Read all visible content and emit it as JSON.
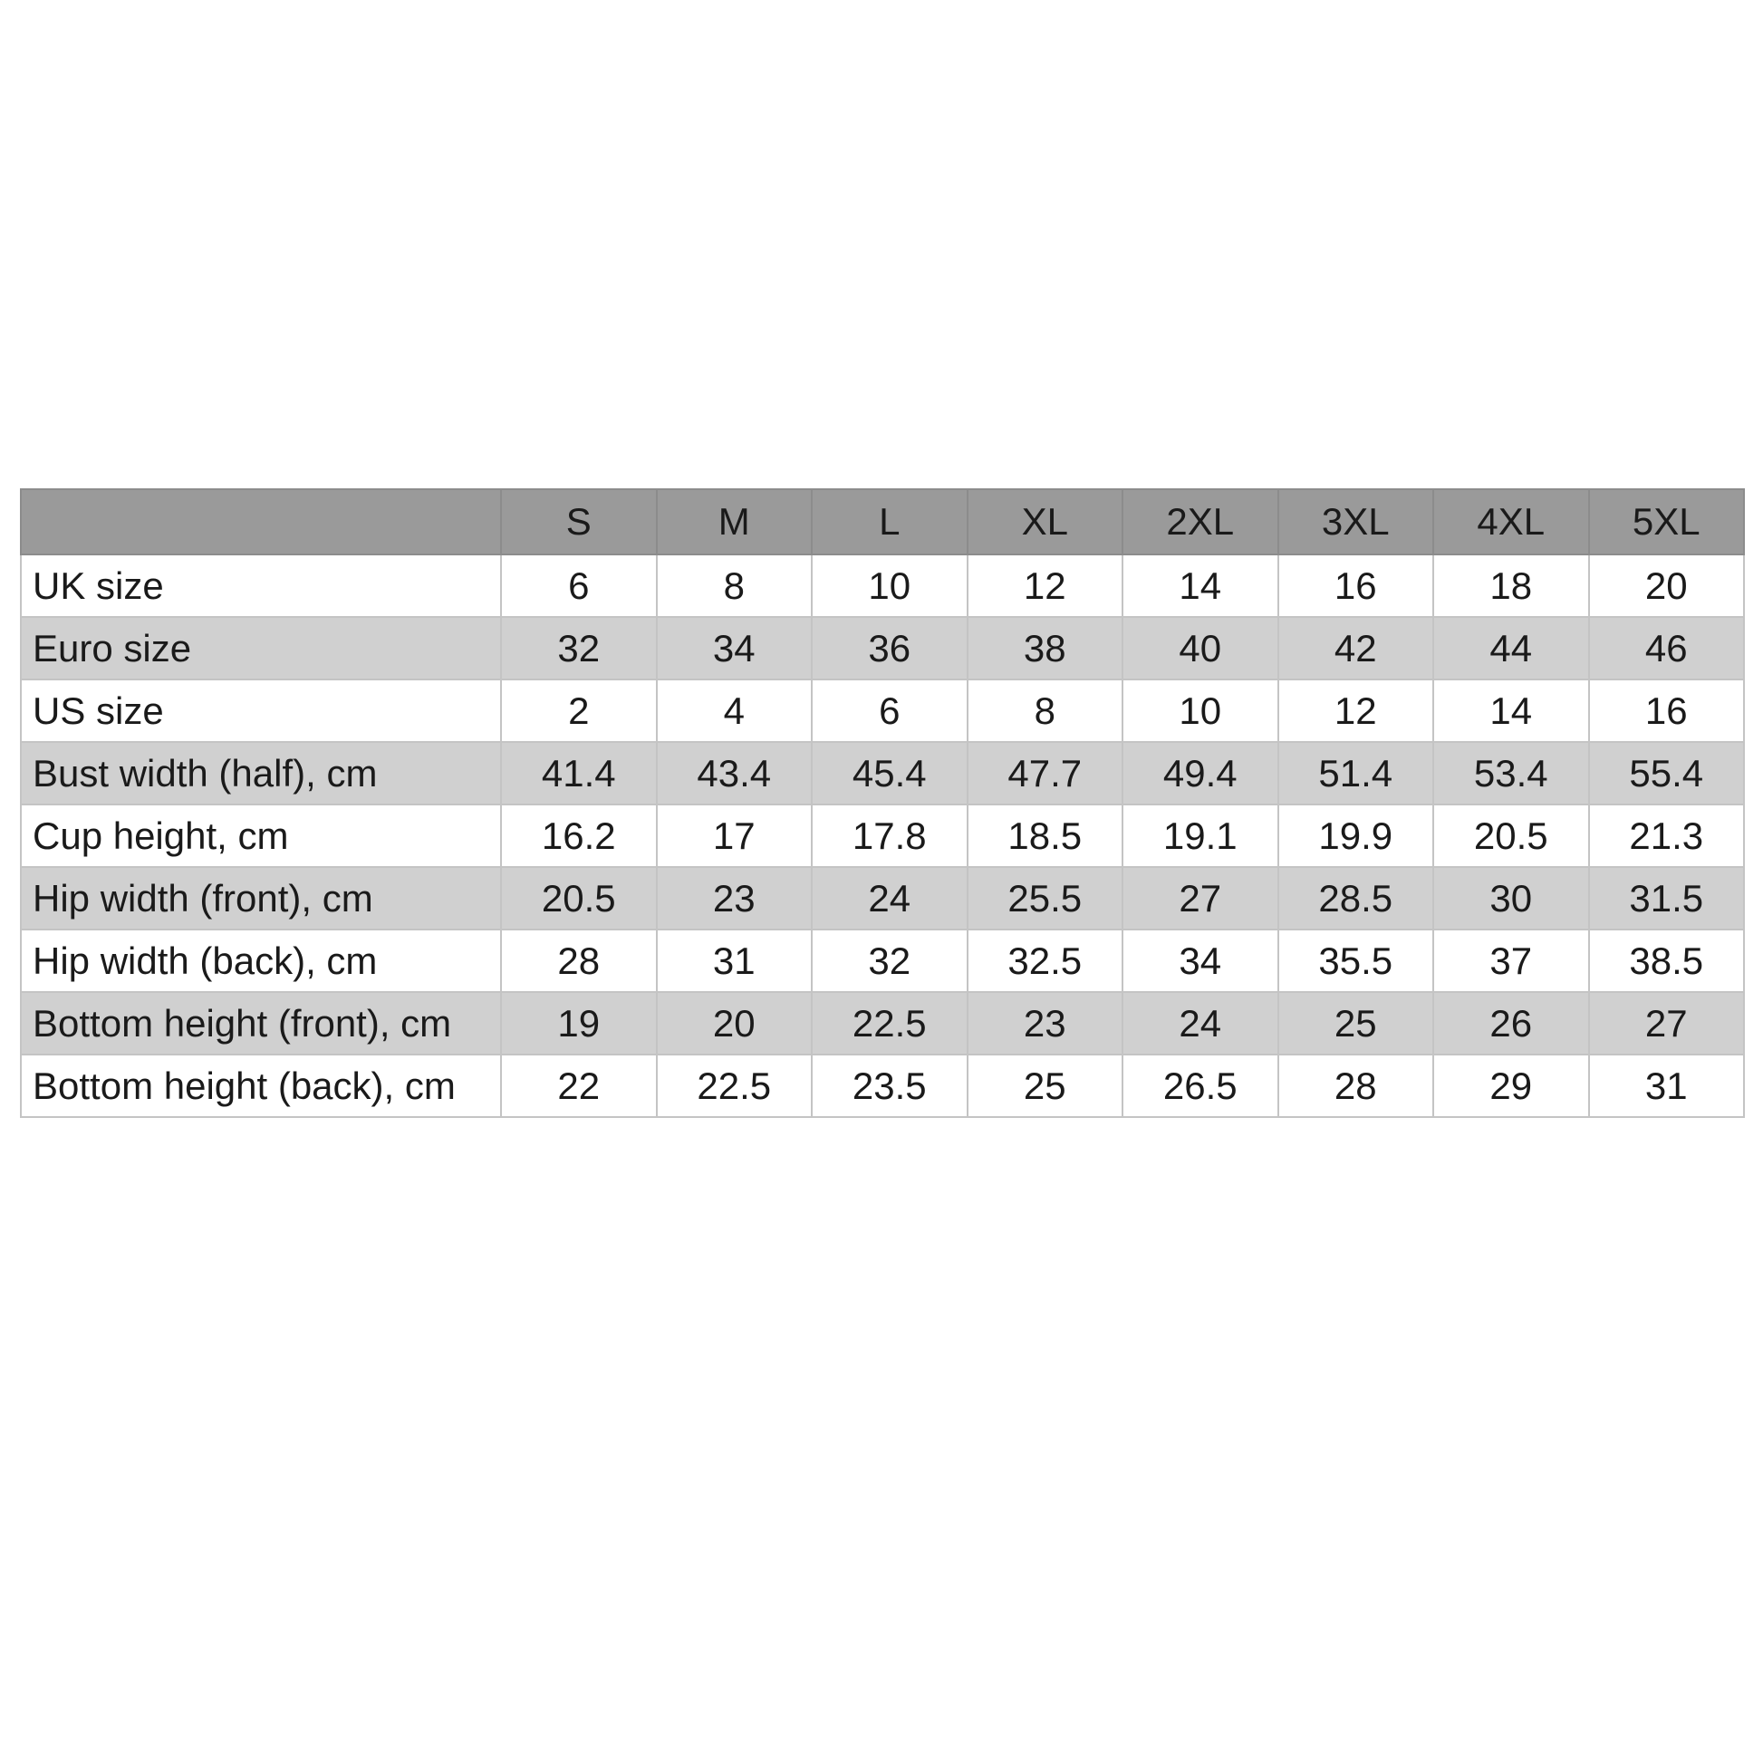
{
  "table": {
    "header": [
      "S",
      "M",
      "L",
      "XL",
      "2XL",
      "3XL",
      "4XL",
      "5XL"
    ],
    "rows": [
      {
        "label": "UK size",
        "values": [
          6,
          8,
          10,
          12,
          14,
          16,
          18,
          20
        ]
      },
      {
        "label": "Euro size",
        "values": [
          32,
          34,
          36,
          38,
          40,
          42,
          44,
          46
        ]
      },
      {
        "label": "US size",
        "values": [
          2,
          4,
          6,
          8,
          10,
          12,
          14,
          16
        ]
      },
      {
        "label": "Bust width (half), cm",
        "values": [
          41.4,
          43.4,
          45.4,
          47.7,
          49.4,
          51.4,
          53.4,
          55.4
        ]
      },
      {
        "label": "Cup height, cm",
        "values": [
          16.2,
          17,
          17.8,
          18.5,
          19.1,
          19.9,
          20.5,
          21.3
        ]
      },
      {
        "label": "Hip width (front), cm",
        "values": [
          20.5,
          23,
          24,
          25.5,
          27,
          28.5,
          30,
          31.5
        ]
      },
      {
        "label": "Hip width (back), cm",
        "values": [
          28,
          31,
          32,
          32.5,
          34,
          35.5,
          37,
          38.5
        ]
      },
      {
        "label": "Bottom height (front), cm",
        "values": [
          19,
          20,
          22.5,
          23,
          24,
          25,
          26,
          27
        ]
      },
      {
        "label": "Bottom height (back), cm",
        "values": [
          22,
          22.5,
          23.5,
          25,
          26.5,
          28,
          29,
          31
        ]
      }
    ]
  }
}
